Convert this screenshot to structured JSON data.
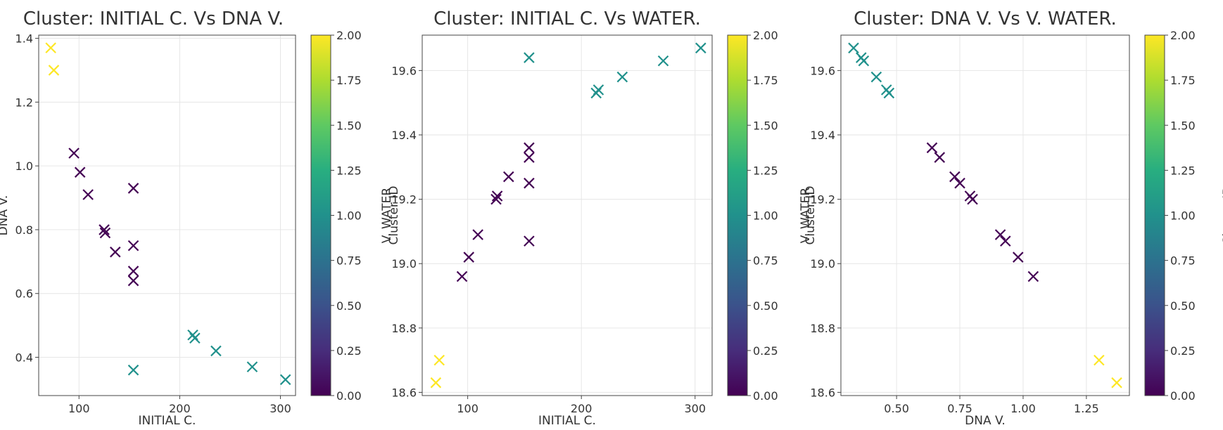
{
  "colors": {
    "cluster_0": "#440154",
    "cluster_1": "#21918c",
    "cluster_2": "#fde725",
    "grid": "#e6e6e6",
    "axis": "#444444"
  },
  "colormap": "viridis",
  "chart_data": [
    {
      "type": "scatter",
      "title": "Cluster: INITIAL C. Vs DNA V.",
      "xlabel": "INITIAL C.",
      "ylabel": "DNA V.",
      "marker": "x",
      "grid": true,
      "xlim": [
        60,
        315
      ],
      "ylim": [
        0.28,
        1.41
      ],
      "xticks": [
        100,
        200,
        300
      ],
      "xtick_labels": [
        "100",
        "200",
        "300"
      ],
      "yticks": [
        0.4,
        0.6,
        0.8,
        1.0,
        1.2,
        1.4
      ],
      "ytick_labels": [
        "0.4",
        "0.6",
        "0.8",
        "1.0",
        "1.2",
        "1.4"
      ],
      "colorbar": {
        "label": "Cluster ID",
        "range": [
          0,
          2
        ],
        "ticks": [
          "0.00",
          "0.25",
          "0.50",
          "0.75",
          "1.00",
          "1.25",
          "1.50",
          "1.75",
          "2.00"
        ]
      },
      "points": [
        {
          "x": 72,
          "y": 1.37,
          "cluster": 2
        },
        {
          "x": 75,
          "y": 1.3,
          "cluster": 2
        },
        {
          "x": 95,
          "y": 1.04,
          "cluster": 0
        },
        {
          "x": 101,
          "y": 0.98,
          "cluster": 0
        },
        {
          "x": 109,
          "y": 0.91,
          "cluster": 0
        },
        {
          "x": 125,
          "y": 0.8,
          "cluster": 0
        },
        {
          "x": 126,
          "y": 0.79,
          "cluster": 0
        },
        {
          "x": 136,
          "y": 0.73,
          "cluster": 0
        },
        {
          "x": 154,
          "y": 0.93,
          "cluster": 0
        },
        {
          "x": 154,
          "y": 0.75,
          "cluster": 0
        },
        {
          "x": 154,
          "y": 0.67,
          "cluster": 0
        },
        {
          "x": 154,
          "y": 0.64,
          "cluster": 0
        },
        {
          "x": 154,
          "y": 0.36,
          "cluster": 1
        },
        {
          "x": 213,
          "y": 0.47,
          "cluster": 1
        },
        {
          "x": 215,
          "y": 0.46,
          "cluster": 1
        },
        {
          "x": 236,
          "y": 0.42,
          "cluster": 1
        },
        {
          "x": 272,
          "y": 0.37,
          "cluster": 1
        },
        {
          "x": 305,
          "y": 0.33,
          "cluster": 1
        }
      ]
    },
    {
      "type": "scatter",
      "title": "Cluster: INITIAL C. Vs WATER.",
      "xlabel": "INITIAL C.",
      "ylabel": "V. WATER",
      "marker": "x",
      "grid": true,
      "xlim": [
        60,
        315
      ],
      "ylim": [
        18.59,
        19.71
      ],
      "xticks": [
        100,
        200,
        300
      ],
      "xtick_labels": [
        "100",
        "200",
        "300"
      ],
      "yticks": [
        18.6,
        18.8,
        19.0,
        19.2,
        19.4,
        19.6
      ],
      "ytick_labels": [
        "18.6",
        "18.8",
        "19.0",
        "19.2",
        "19.4",
        "19.6"
      ],
      "colorbar": {
        "label": "Cluster ID",
        "range": [
          0,
          2
        ],
        "ticks": [
          "0.00",
          "0.25",
          "0.50",
          "0.75",
          "1.00",
          "1.25",
          "1.50",
          "1.75",
          "2.00"
        ]
      },
      "points": [
        {
          "x": 72,
          "y": 18.63,
          "cluster": 2
        },
        {
          "x": 75,
          "y": 18.7,
          "cluster": 2
        },
        {
          "x": 95,
          "y": 18.96,
          "cluster": 0
        },
        {
          "x": 101,
          "y": 19.02,
          "cluster": 0
        },
        {
          "x": 109,
          "y": 19.09,
          "cluster": 0
        },
        {
          "x": 125,
          "y": 19.2,
          "cluster": 0
        },
        {
          "x": 126,
          "y": 19.21,
          "cluster": 0
        },
        {
          "x": 136,
          "y": 19.27,
          "cluster": 0
        },
        {
          "x": 154,
          "y": 19.07,
          "cluster": 0
        },
        {
          "x": 154,
          "y": 19.25,
          "cluster": 0
        },
        {
          "x": 154,
          "y": 19.33,
          "cluster": 0
        },
        {
          "x": 154,
          "y": 19.36,
          "cluster": 0
        },
        {
          "x": 154,
          "y": 19.64,
          "cluster": 1
        },
        {
          "x": 213,
          "y": 19.53,
          "cluster": 1
        },
        {
          "x": 215,
          "y": 19.54,
          "cluster": 1
        },
        {
          "x": 236,
          "y": 19.58,
          "cluster": 1
        },
        {
          "x": 272,
          "y": 19.63,
          "cluster": 1
        },
        {
          "x": 305,
          "y": 19.67,
          "cluster": 1
        }
      ]
    },
    {
      "type": "scatter",
      "title": "Cluster: DNA V. Vs V. WATER.",
      "xlabel": "DNA V.",
      "ylabel": "V. WATER",
      "marker": "x",
      "grid": true,
      "xlim": [
        0.28,
        1.42
      ],
      "ylim": [
        18.59,
        19.71
      ],
      "xticks": [
        0.5,
        0.75,
        1.0,
        1.25
      ],
      "xtick_labels": [
        "0.50",
        "0.75",
        "1.00",
        "1.25"
      ],
      "yticks": [
        18.6,
        18.8,
        19.0,
        19.2,
        19.4,
        19.6
      ],
      "ytick_labels": [
        "18.6",
        "18.8",
        "19.0",
        "19.2",
        "19.4",
        "19.6"
      ],
      "colorbar": {
        "label": "Cluster ID",
        "range": [
          0,
          2
        ],
        "ticks": [
          "0.00",
          "0.25",
          "0.50",
          "0.75",
          "1.00",
          "1.25",
          "1.50",
          "1.75",
          "2.00"
        ]
      },
      "points": [
        {
          "x": 0.33,
          "y": 19.67,
          "cluster": 1
        },
        {
          "x": 0.36,
          "y": 19.64,
          "cluster": 1
        },
        {
          "x": 0.37,
          "y": 19.63,
          "cluster": 1
        },
        {
          "x": 0.42,
          "y": 19.58,
          "cluster": 1
        },
        {
          "x": 0.46,
          "y": 19.54,
          "cluster": 1
        },
        {
          "x": 0.47,
          "y": 19.53,
          "cluster": 1
        },
        {
          "x": 0.64,
          "y": 19.36,
          "cluster": 0
        },
        {
          "x": 0.67,
          "y": 19.33,
          "cluster": 0
        },
        {
          "x": 0.73,
          "y": 19.27,
          "cluster": 0
        },
        {
          "x": 0.75,
          "y": 19.25,
          "cluster": 0
        },
        {
          "x": 0.79,
          "y": 19.21,
          "cluster": 0
        },
        {
          "x": 0.8,
          "y": 19.2,
          "cluster": 0
        },
        {
          "x": 0.91,
          "y": 19.09,
          "cluster": 0
        },
        {
          "x": 0.93,
          "y": 19.07,
          "cluster": 0
        },
        {
          "x": 0.98,
          "y": 19.02,
          "cluster": 0
        },
        {
          "x": 1.04,
          "y": 18.96,
          "cluster": 0
        },
        {
          "x": 1.3,
          "y": 18.7,
          "cluster": 2
        },
        {
          "x": 1.37,
          "y": 18.63,
          "cluster": 2
        }
      ]
    }
  ]
}
